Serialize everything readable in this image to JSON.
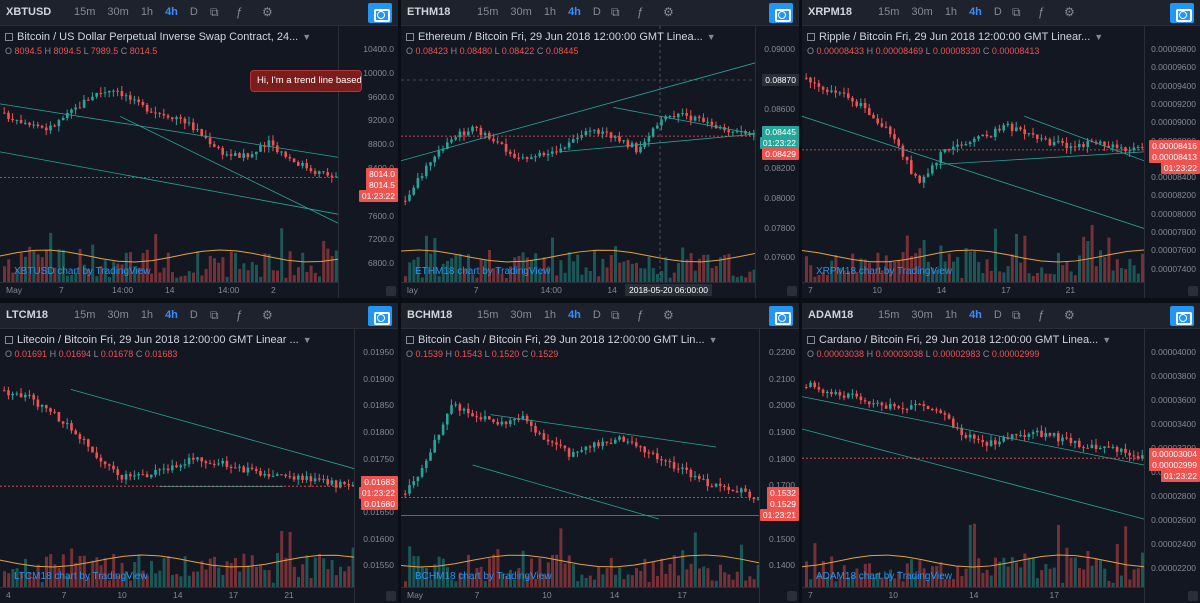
{
  "intervals": [
    "15m",
    "30m",
    "1h",
    "4h",
    "D"
  ],
  "active_interval": "4h",
  "icons": [
    "compare-icon",
    "indicators-icon",
    "settings-icon",
    "camera-icon"
  ],
  "colors": {
    "bg": "#131722",
    "up": "#26a69a",
    "down": "#ef5350",
    "trend": "#26a69a",
    "accent": "#2196f3"
  },
  "panels": [
    {
      "symbol": "XBTUSD",
      "title": "Bitcoin / US Dollar Perpetual Inverse Swap Contract, 24...",
      "ohlc": {
        "O": "8094.5",
        "H": "8094.5",
        "L": "7989.5",
        "C": "8014.5"
      },
      "ticks": [
        "10400.0",
        "10000.0",
        "9600.0",
        "9200.0",
        "8800.0",
        "8400.0",
        "8000.0",
        "7600.0",
        "7200.0",
        "6800.0"
      ],
      "xticks": [
        "May",
        "7",
        "14:00",
        "14",
        "14:00",
        "2"
      ],
      "price_labels": [
        {
          "text": "8014.0",
          "color": "#ef5350"
        },
        {
          "text": "8014.5",
          "color": "#ef5350"
        },
        {
          "text": "01:23:22",
          "color": "#ef5350"
        }
      ],
      "watermark": "XBTUSD chart by TradingView",
      "tooltip": "Hi, I'm a trend line based o"
    },
    {
      "symbol": "ETHM18",
      "title": "Ethereum / Bitcoin Fri, 29 Jun 2018 12:00:00 GMT Linea...",
      "ohlc": {
        "O": "0.08423",
        "H": "0.08480",
        "L": "0.08422",
        "C": "0.08445"
      },
      "ticks": [
        "0.09000",
        "0.08800",
        "0.08600",
        "0.08400",
        "0.08200",
        "0.08000",
        "0.07800",
        "0.07600"
      ],
      "xticks": [
        "lay",
        "7",
        "14:00",
        "14",
        "14:0"
      ],
      "price_labels": [
        {
          "text": "0.08445",
          "color": "#26a69a"
        },
        {
          "text": "01:23:22",
          "color": "#26a69a"
        },
        {
          "text": "0.08429",
          "color": "#ef5350"
        }
      ],
      "crosshair_y": "0.08870",
      "crosshair_x": "2018-05-20 06:00:00",
      "watermark": "ETHM18 chart by TradingView"
    },
    {
      "symbol": "XRPM18",
      "title": "Ripple / Bitcoin Fri, 29 Jun 2018 12:00:00 GMT Linear...",
      "ohlc": {
        "O": "0.00008433",
        "H": "0.00008469",
        "L": "0.00008330",
        "C": "0.00008413"
      },
      "ticks": [
        "0.00009800",
        "0.00009600",
        "0.00009400",
        "0.00009200",
        "0.00009000",
        "0.00008800",
        "0.00008600",
        "0.00008400",
        "0.00008200",
        "0.00008000",
        "0.00007800",
        "0.00007600",
        "0.00007400"
      ],
      "xticks": [
        "7",
        "10",
        "14",
        "17",
        "21"
      ],
      "price_labels": [
        {
          "text": "0.00008416",
          "color": "#ef5350"
        },
        {
          "text": "0.00008413",
          "color": "#ef5350"
        },
        {
          "text": "01:23:22",
          "color": "#ef5350"
        }
      ],
      "watermark": "XRPM18 chart by TradingView"
    },
    {
      "symbol": "LTCM18",
      "title": "Litecoin / Bitcoin Fri, 29 Jun 2018 12:00:00 GMT Linear ...",
      "ohlc": {
        "O": "0.01691",
        "H": "0.01694",
        "L": "0.01678",
        "C": "0.01683"
      },
      "ticks": [
        "0.01950",
        "0.01900",
        "0.01850",
        "0.01800",
        "0.01750",
        "0.01700",
        "0.01650",
        "0.01600",
        "0.01550"
      ],
      "xticks": [
        "4",
        "7",
        "10",
        "14",
        "17",
        "21"
      ],
      "price_labels": [
        {
          "text": "0.01683",
          "color": "#ef5350"
        },
        {
          "text": "01:23:22",
          "color": "#ef5350"
        },
        {
          "text": "0.01680",
          "color": "#ef5350"
        }
      ],
      "watermark": "LTCM18 chart by TradingView"
    },
    {
      "symbol": "BCHM18",
      "title": "Bitcoin Cash / Bitcoin Fri, 29 Jun 2018 12:00:00 GMT Lin...",
      "ohlc": {
        "O": "0.1539",
        "H": "0.1543",
        "L": "0.1520",
        "C": "0.1529"
      },
      "ticks": [
        "0.2200",
        "0.2100",
        "0.2000",
        "0.1900",
        "0.1800",
        "0.1700",
        "0.1600",
        "0.1500",
        "0.1400"
      ],
      "xticks": [
        "May",
        "7",
        "10",
        "14",
        "17"
      ],
      "price_labels": [
        {
          "text": "0.1532",
          "color": "#ef5350"
        },
        {
          "text": "0.1529",
          "color": "#ef5350"
        },
        {
          "text": "01:23:21",
          "color": "#ef5350"
        }
      ],
      "watermark": "BCHM18 chart by TradingView"
    },
    {
      "symbol": "ADAM18",
      "title": "Cardano / Bitcoin Fri, 29 Jun 2018 12:00:00 GMT Linea...",
      "ohlc": {
        "O": "0.00003038",
        "H": "0.00003038",
        "L": "0.00002983",
        "C": "0.00002999"
      },
      "ticks": [
        "0.00004000",
        "0.00003800",
        "0.00003600",
        "0.00003400",
        "0.00003200",
        "0.00003000",
        "0.00002800",
        "0.00002600",
        "0.00002400",
        "0.00002200"
      ],
      "xticks": [
        "7",
        "10",
        "14",
        "17"
      ],
      "price_labels": [
        {
          "text": "0.00003004",
          "color": "#ef5350"
        },
        {
          "text": "0.00002999",
          "color": "#ef5350"
        },
        {
          "text": "01:23:22",
          "color": "#ef5350"
        }
      ],
      "watermark": "ADAM18 chart by TradingView"
    }
  ]
}
